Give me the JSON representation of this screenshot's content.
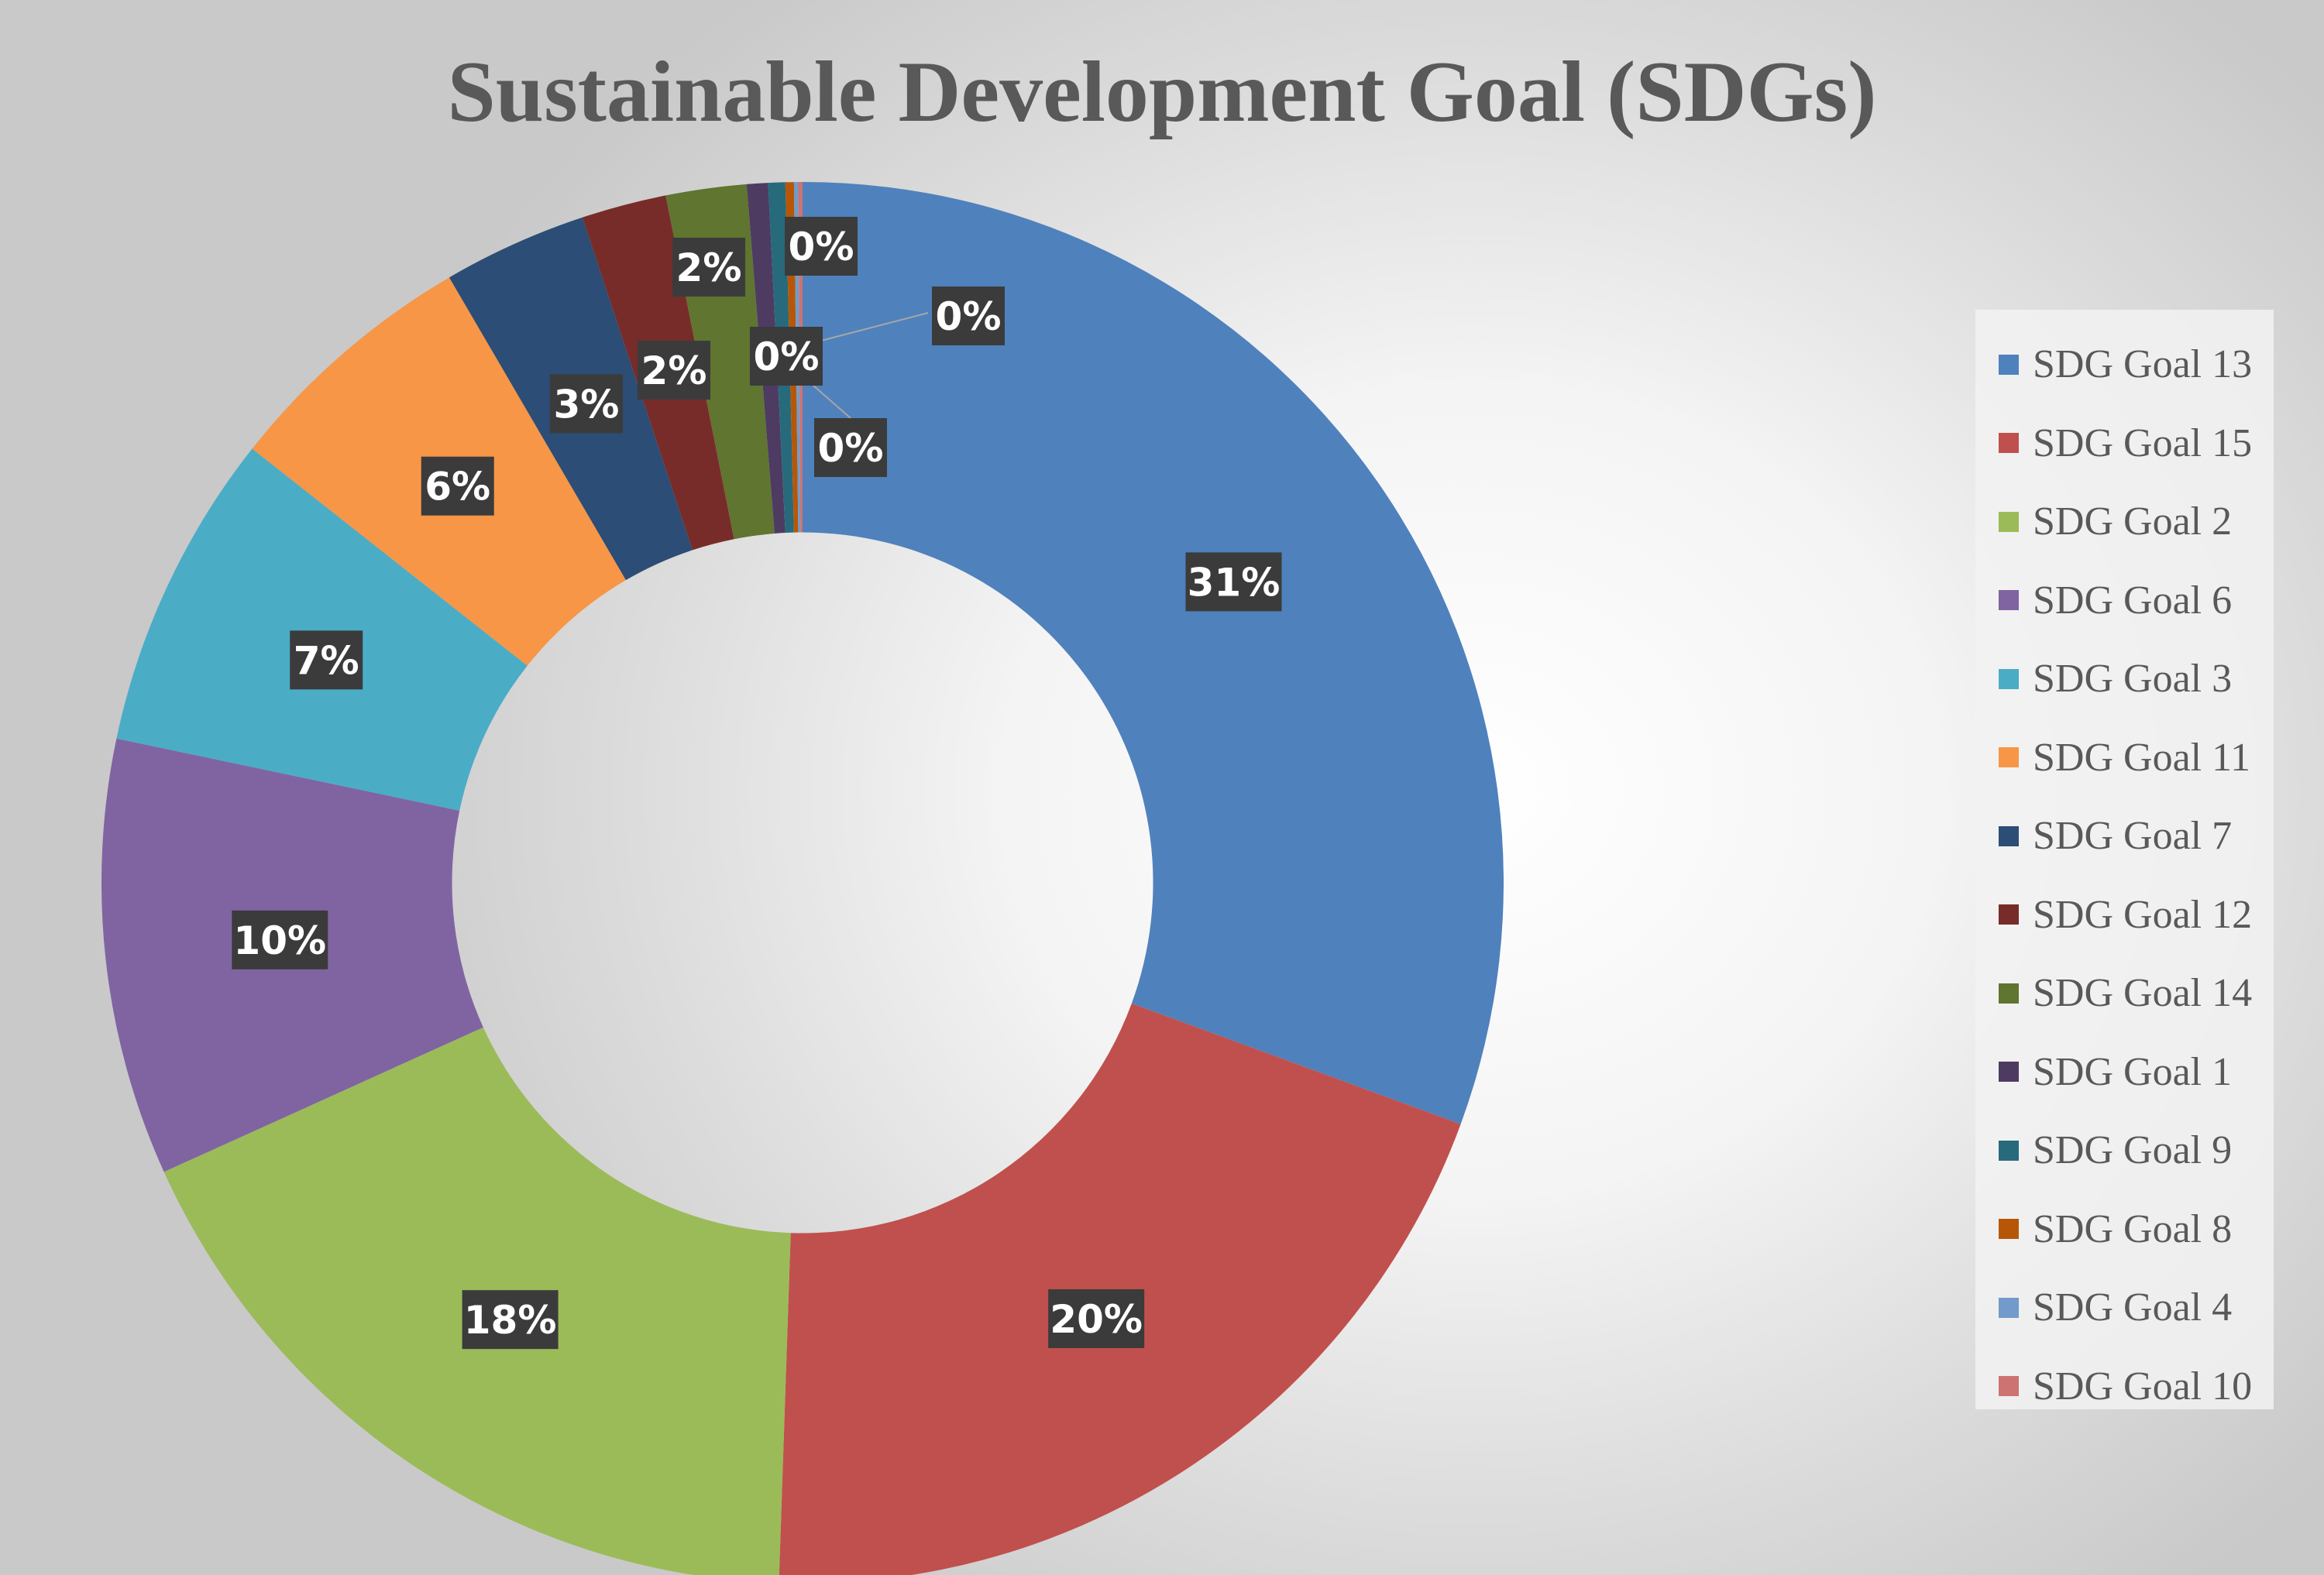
{
  "chart_data": {
    "type": "pie",
    "title": "Sustainable Development Goal (SDGs)",
    "categories": [
      "SDG Goal 13",
      "SDG Goal 15",
      "SDG Goal 2",
      "SDG Goal 6",
      "SDG Goal 3",
      "SDG Goal 11",
      "SDG Goal 7",
      "SDG Goal 12",
      "SDG Goal 14",
      "SDG Goal 1",
      "SDG Goal 9",
      "SDG Goal 8",
      "SDG Goal 4",
      "SDG Goal 10"
    ],
    "values": [
      31.3,
      20.4,
      18.1,
      10.3,
      7.5,
      6.1,
      3.4,
      2.0,
      1.9,
      0.5,
      0.4,
      0.2,
      0.1,
      0.1
    ],
    "data_labels": [
      "31%",
      "20%",
      "18%",
      "10%",
      "7%",
      "6%",
      "3%",
      "2%",
      "2%",
      "0%",
      "0%",
      "0%",
      "0%",
      "0%"
    ],
    "colors": [
      "#4F81BD",
      "#C0504D",
      "#9BBB59",
      "#8064A2",
      "#4BACC6",
      "#F79646",
      "#2C4D75",
      "#772C2A",
      "#5F7530",
      "#4D3B62",
      "#276A7C",
      "#B65708",
      "#729ACA",
      "#CD7371"
    ],
    "hole": 0.5,
    "legend_position": "right"
  }
}
